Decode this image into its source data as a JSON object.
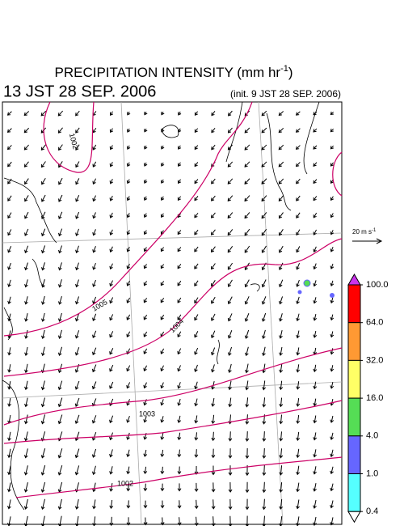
{
  "header": {
    "title": "PRECIPITATION INTENSITY (mm hr",
    "title_sup": "-1",
    "title_end": ")",
    "valid_time": "13 JST 28 SEP. 2006",
    "init_time": "(init. 9 JST 28 SEP. 2006)"
  },
  "map": {
    "isobar_labels": [
      "1002",
      "1005",
      "1004",
      "1003",
      "1002"
    ]
  },
  "wind_scale": {
    "label": "20 m s",
    "label_sup": "-1"
  },
  "colorbar": {
    "ticks": [
      {
        "value": 100,
        "label": "100.0"
      },
      {
        "value": 64,
        "label": "64.0"
      },
      {
        "value": 32,
        "label": "32.0"
      },
      {
        "value": 16,
        "label": "16.0"
      },
      {
        "value": 4,
        "label": "4.0"
      },
      {
        "value": 1,
        "label": "1.0"
      },
      {
        "value": 0.4,
        "label": "0.4"
      }
    ],
    "colors": [
      "#ff0000",
      "#ff9933",
      "#ffff66",
      "#55dd55",
      "#6666ff",
      "#55ffff"
    ],
    "over_color": "#cc33ee",
    "under_color": "#ffffff"
  }
}
